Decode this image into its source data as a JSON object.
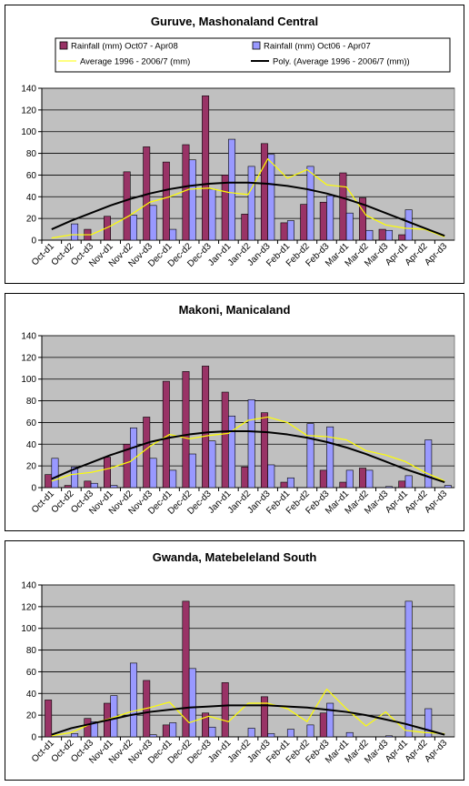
{
  "chart_data": [
    {
      "type": "bar",
      "title": "Guruve, Mashonaland Central",
      "show_legend": true,
      "ylim": [
        0,
        140
      ],
      "yticks": [
        0,
        20,
        40,
        60,
        80,
        100,
        120,
        140
      ],
      "grid": true,
      "categories": [
        "Oct-d1",
        "Oct-d2",
        "Oct-d3",
        "Nov-d1",
        "Nov-d2",
        "Nov-d3",
        "Dec-d1",
        "Dec-d2",
        "Dec-d3",
        "Jan-d1",
        "Jan-d2",
        "Jan-d3",
        "Feb-d1",
        "Feb-d2",
        "Feb-d3",
        "Mar-d1",
        "Mar-d2",
        "Mar-d3",
        "Apr-d1",
        "Apr-d2",
        "Apr-d3"
      ],
      "series": [
        {
          "name": "Rainfall (mm) Oct07 - Apr08",
          "kind": "bar",
          "color": "#993366",
          "values": [
            0,
            0,
            10,
            22,
            63,
            86,
            72,
            88,
            133,
            60,
            24,
            89,
            16,
            33,
            35,
            62,
            39,
            10,
            5,
            0,
            0
          ]
        },
        {
          "name": "Rainfall (mm) Oct06 - Apr07",
          "kind": "bar",
          "color": "#9999ff",
          "values": [
            0,
            15,
            0,
            0,
            23,
            32,
            10,
            74,
            47,
            93,
            68,
            79,
            18,
            68,
            41,
            25,
            9,
            9,
            28,
            0,
            0
          ]
        },
        {
          "name": "Average 1996 - 2006/7 (mm)",
          "kind": "line",
          "color": "#ffff00",
          "values": [
            2,
            5,
            5,
            13,
            23,
            35,
            40,
            47,
            48,
            44,
            42,
            75,
            57,
            65,
            51,
            49,
            23,
            14,
            11,
            10,
            3
          ]
        },
        {
          "name": "Poly. (Average 1996 - 2006/7 (mm))",
          "kind": "trend",
          "color": "#000000",
          "values": [
            10,
            18,
            25,
            32,
            38,
            43,
            47,
            50,
            52,
            53,
            53,
            52,
            50,
            47,
            43,
            38,
            32,
            25,
            18,
            11,
            4
          ]
        }
      ]
    },
    {
      "type": "bar",
      "title": "Makoni, Manicaland",
      "show_legend": false,
      "ylim": [
        0,
        140
      ],
      "yticks": [
        0,
        20,
        40,
        60,
        80,
        100,
        120,
        140
      ],
      "grid": true,
      "categories": [
        "Oct-d1",
        "Oct-d2",
        "Oct-d3",
        "Nov-d1",
        "Nov-d2",
        "Nov-d3",
        "Dec-d1",
        "Dec-d2",
        "Dec-d3",
        "Jan-d1",
        "Jan-d2",
        "Jan-d3",
        "Feb-d1",
        "Feb-d2",
        "Feb-d3",
        "Mar-d1",
        "Mar-d2",
        "Mar-d3",
        "Apr-d1",
        "Apr-d2",
        "Apr-d3"
      ],
      "series": [
        {
          "name": "Rainfall (mm) Oct07 - Apr08",
          "kind": "bar",
          "color": "#993366",
          "values": [
            12,
            2,
            6,
            28,
            40,
            65,
            98,
            107,
            112,
            88,
            19,
            69,
            5,
            0,
            16,
            5,
            18,
            0,
            6,
            0,
            0
          ]
        },
        {
          "name": "Rainfall (mm) Oct06 - Apr07",
          "kind": "bar",
          "color": "#9999ff",
          "values": [
            27,
            19,
            4,
            2,
            55,
            27,
            16,
            31,
            43,
            66,
            81,
            21,
            9,
            59,
            56,
            16,
            16,
            1,
            11,
            44,
            2
          ]
        },
        {
          "name": "Average 1996 - 2006/7 (mm)",
          "kind": "line",
          "color": "#ffff00",
          "values": [
            6,
            12,
            14,
            18,
            24,
            38,
            49,
            45,
            48,
            50,
            62,
            65,
            60,
            48,
            47,
            44,
            34,
            30,
            24,
            14,
            6
          ]
        },
        {
          "name": "Poly. (Average 1996 - 2006/7 (mm))",
          "kind": "trend",
          "color": "#000000",
          "values": [
            8,
            16,
            23,
            30,
            36,
            42,
            46,
            49,
            51,
            52,
            52,
            51,
            49,
            46,
            42,
            37,
            31,
            24,
            17,
            11,
            5
          ]
        }
      ]
    },
    {
      "type": "bar",
      "title": "Gwanda, Matebeleland South",
      "show_legend": false,
      "ylim": [
        0,
        140
      ],
      "yticks": [
        0,
        20,
        40,
        60,
        80,
        100,
        120,
        140
      ],
      "grid": true,
      "categories": [
        "Oct-d1",
        "Oct-d2",
        "Oct-d3",
        "Nov-d1",
        "Nov-d2",
        "Nov-d3",
        "Dec-d1",
        "Dec-d2",
        "Dec-d3",
        "Jan-d1",
        "Jan-d2",
        "Jan-d3",
        "Feb-d1",
        "Feb-d2",
        "Feb-d3",
        "Mar-d1",
        "Mar-d2",
        "Mar-d3",
        "Apr-d1",
        "Apr-d2",
        "Apr-d3"
      ],
      "series": [
        {
          "name": "Rainfall (mm) Oct07 - Apr08",
          "kind": "bar",
          "color": "#993366",
          "values": [
            34,
            0,
            17,
            31,
            0,
            52,
            11,
            125,
            22,
            50,
            0,
            37,
            0,
            0,
            22,
            0,
            0,
            0,
            0,
            0,
            0
          ]
        },
        {
          "name": "Rainfall (mm) Oct06 - Apr07",
          "kind": "bar",
          "color": "#9999ff",
          "values": [
            0,
            3,
            14,
            38,
            68,
            2,
            13,
            63,
            9,
            0,
            8,
            3,
            7,
            11,
            31,
            4,
            0,
            1,
            125,
            26,
            0
          ]
        },
        {
          "name": "Average 1996 - 2006/7 (mm)",
          "kind": "line",
          "color": "#ffff00",
          "values": [
            1,
            4,
            12,
            17,
            23,
            27,
            32,
            13,
            19,
            14,
            31,
            31,
            26,
            14,
            44,
            26,
            10,
            23,
            6,
            4,
            3
          ]
        },
        {
          "name": "Poly. (Average 1996 - 2006/7 (mm))",
          "kind": "trend",
          "color": "#000000",
          "values": [
            2,
            8,
            12,
            16,
            20,
            23,
            25,
            27,
            28,
            29,
            29,
            29,
            28,
            27,
            25,
            23,
            20,
            16,
            12,
            7,
            2
          ]
        }
      ]
    }
  ]
}
